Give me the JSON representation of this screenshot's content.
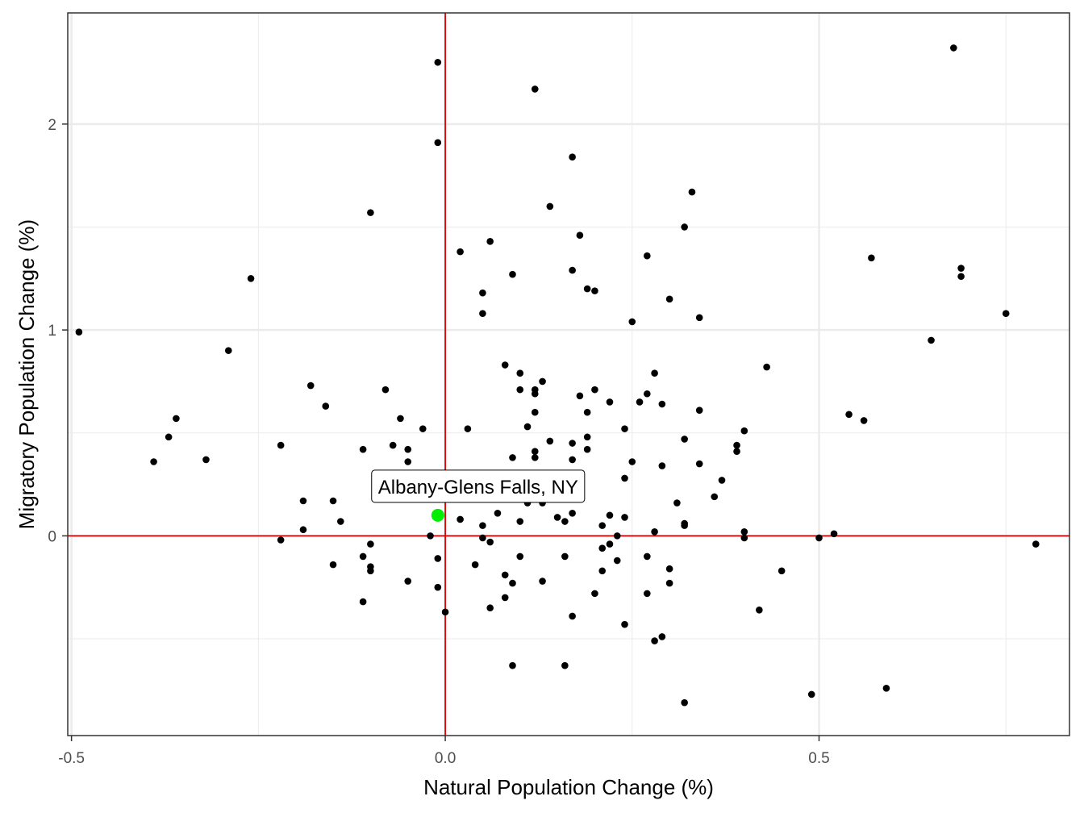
{
  "chart_data": {
    "type": "scatter",
    "title": "",
    "xlabel": "Natural Population Change (%)",
    "ylabel": "Migratory Population Change (%)",
    "xlim": [
      -0.505,
      0.835
    ],
    "ylim": [
      -0.97,
      2.54
    ],
    "x_ticks": [
      -0.5,
      0.0,
      0.5
    ],
    "x_tick_labels": [
      "-0.5",
      "0.0",
      "0.5"
    ],
    "y_ticks": [
      0,
      1,
      2
    ],
    "y_tick_labels": [
      "0",
      "1",
      "2"
    ],
    "x_minor_grid": [
      -0.25,
      0.25,
      0.75
    ],
    "y_minor_grid": [
      -0.5,
      0.5,
      1.5
    ],
    "grid": true,
    "reference_lines": {
      "x": 0,
      "y": 0,
      "color": "#dd0000"
    },
    "point_color": "#000000",
    "highlight_color": "#00ee00",
    "highlight": {
      "label": "Albany-Glens Falls, NY",
      "x": -0.01,
      "y": 0.1
    },
    "points": [
      [
        -0.49,
        0.99
      ],
      [
        -0.39,
        0.36
      ],
      [
        -0.37,
        0.48
      ],
      [
        -0.36,
        0.57
      ],
      [
        -0.32,
        0.37
      ],
      [
        -0.29,
        0.9
      ],
      [
        -0.26,
        1.25
      ],
      [
        -0.22,
        0.44
      ],
      [
        -0.22,
        -0.02
      ],
      [
        -0.19,
        0.17
      ],
      [
        -0.19,
        0.03
      ],
      [
        -0.18,
        0.73
      ],
      [
        -0.16,
        0.63
      ],
      [
        -0.15,
        0.17
      ],
      [
        -0.15,
        -0.14
      ],
      [
        -0.14,
        0.07
      ],
      [
        -0.11,
        0.42
      ],
      [
        -0.11,
        -0.1
      ],
      [
        -0.11,
        -0.32
      ],
      [
        -0.1,
        1.57
      ],
      [
        -0.1,
        -0.04
      ],
      [
        -0.1,
        -0.15
      ],
      [
        -0.1,
        -0.17
      ],
      [
        -0.08,
        0.71
      ],
      [
        -0.07,
        0.44
      ],
      [
        -0.06,
        0.57
      ],
      [
        -0.05,
        0.42
      ],
      [
        -0.05,
        0.36
      ],
      [
        -0.05,
        -0.22
      ],
      [
        -0.03,
        0.52
      ],
      [
        -0.02,
        0.0
      ],
      [
        -0.01,
        2.3
      ],
      [
        -0.01,
        1.91
      ],
      [
        -0.01,
        -0.11
      ],
      [
        -0.01,
        -0.25
      ],
      [
        0.0,
        -0.37
      ],
      [
        0.02,
        1.38
      ],
      [
        0.02,
        0.08
      ],
      [
        0.03,
        0.52
      ],
      [
        0.04,
        -0.14
      ],
      [
        0.05,
        1.18
      ],
      [
        0.05,
        1.08
      ],
      [
        0.05,
        0.05
      ],
      [
        0.05,
        -0.01
      ],
      [
        0.06,
        1.43
      ],
      [
        0.06,
        -0.03
      ],
      [
        0.06,
        -0.35
      ],
      [
        0.07,
        0.11
      ],
      [
        0.08,
        0.83
      ],
      [
        0.08,
        -0.19
      ],
      [
        0.08,
        -0.3
      ],
      [
        0.09,
        1.27
      ],
      [
        0.09,
        0.38
      ],
      [
        0.09,
        -0.23
      ],
      [
        0.09,
        -0.63
      ],
      [
        0.1,
        0.79
      ],
      [
        0.1,
        0.71
      ],
      [
        0.1,
        0.07
      ],
      [
        0.1,
        -0.1
      ],
      [
        0.11,
        0.53
      ],
      [
        0.11,
        0.16
      ],
      [
        0.12,
        2.17
      ],
      [
        0.12,
        0.71
      ],
      [
        0.12,
        0.69
      ],
      [
        0.12,
        0.6
      ],
      [
        0.12,
        0.41
      ],
      [
        0.12,
        0.38
      ],
      [
        0.13,
        0.75
      ],
      [
        0.13,
        0.16
      ],
      [
        0.13,
        -0.22
      ],
      [
        0.14,
        1.6
      ],
      [
        0.14,
        0.46
      ],
      [
        0.15,
        0.09
      ],
      [
        0.16,
        0.07
      ],
      [
        0.16,
        -0.1
      ],
      [
        0.16,
        -0.63
      ],
      [
        0.17,
        1.84
      ],
      [
        0.17,
        1.29
      ],
      [
        0.17,
        0.45
      ],
      [
        0.17,
        0.37
      ],
      [
        0.17,
        0.11
      ],
      [
        0.17,
        -0.39
      ],
      [
        0.18,
        1.46
      ],
      [
        0.18,
        0.68
      ],
      [
        0.19,
        1.2
      ],
      [
        0.19,
        0.6
      ],
      [
        0.19,
        0.48
      ],
      [
        0.19,
        0.42
      ],
      [
        0.2,
        1.19
      ],
      [
        0.2,
        0.71
      ],
      [
        0.2,
        -0.28
      ],
      [
        0.21,
        0.05
      ],
      [
        0.21,
        -0.06
      ],
      [
        0.21,
        -0.17
      ],
      [
        0.22,
        0.65
      ],
      [
        0.22,
        0.1
      ],
      [
        0.22,
        -0.04
      ],
      [
        0.23,
        0.0
      ],
      [
        0.23,
        -0.12
      ],
      [
        0.24,
        0.52
      ],
      [
        0.24,
        0.28
      ],
      [
        0.24,
        0.09
      ],
      [
        0.24,
        -0.43
      ],
      [
        0.25,
        1.04
      ],
      [
        0.25,
        0.36
      ],
      [
        0.26,
        0.65
      ],
      [
        0.27,
        1.36
      ],
      [
        0.27,
        0.69
      ],
      [
        0.27,
        -0.1
      ],
      [
        0.27,
        -0.28
      ],
      [
        0.28,
        0.79
      ],
      [
        0.28,
        0.02
      ],
      [
        0.28,
        -0.51
      ],
      [
        0.29,
        0.64
      ],
      [
        0.29,
        0.34
      ],
      [
        0.29,
        -0.49
      ],
      [
        0.3,
        1.15
      ],
      [
        0.3,
        -0.16
      ],
      [
        0.3,
        -0.23
      ],
      [
        0.31,
        0.16
      ],
      [
        0.32,
        1.5
      ],
      [
        0.32,
        0.47
      ],
      [
        0.32,
        0.06
      ],
      [
        0.32,
        0.05
      ],
      [
        0.32,
        -0.81
      ],
      [
        0.33,
        1.67
      ],
      [
        0.34,
        1.06
      ],
      [
        0.34,
        0.61
      ],
      [
        0.34,
        0.35
      ],
      [
        0.36,
        0.19
      ],
      [
        0.37,
        0.27
      ],
      [
        0.39,
        0.44
      ],
      [
        0.39,
        0.41
      ],
      [
        0.4,
        0.51
      ],
      [
        0.4,
        0.02
      ],
      [
        0.4,
        -0.01
      ],
      [
        0.42,
        -0.36
      ],
      [
        0.43,
        0.82
      ],
      [
        0.45,
        -0.17
      ],
      [
        0.49,
        -0.77
      ],
      [
        0.5,
        -0.01
      ],
      [
        0.52,
        0.01
      ],
      [
        0.54,
        0.59
      ],
      [
        0.56,
        0.56
      ],
      [
        0.57,
        1.35
      ],
      [
        0.59,
        -0.74
      ],
      [
        0.65,
        0.95
      ],
      [
        0.68,
        2.37
      ],
      [
        0.69,
        1.3
      ],
      [
        0.69,
        1.26
      ],
      [
        0.75,
        1.08
      ],
      [
        0.79,
        -0.04
      ]
    ]
  }
}
